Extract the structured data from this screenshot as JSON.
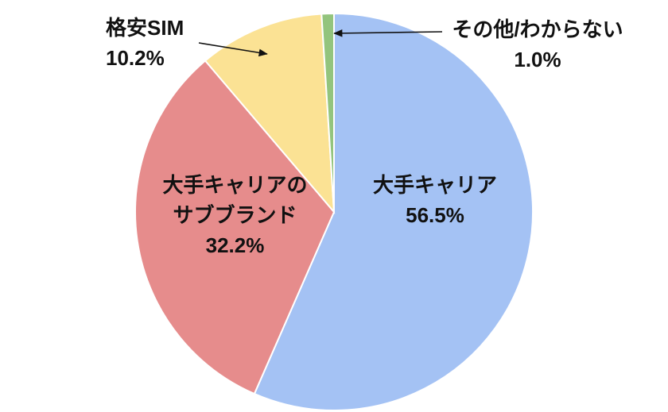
{
  "chart_data": {
    "type": "pie",
    "labels": [
      "大手キャリア",
      "大手キャリアのサブブランド",
      "格安SIM",
      "その他/わからない"
    ],
    "values": [
      56.5,
      32.2,
      10.2,
      1.0
    ],
    "colors": [
      "#a4c2f4",
      "#e68c8c",
      "#fbe294",
      "#93c47d"
    ],
    "start_angle_deg": 0,
    "direction": "clockwise",
    "title": "",
    "legend": "none",
    "label_style": "inside-for-large-slices, outside-with-arrow-for-small-slices"
  },
  "labels": {
    "major_carrier_line1": "大手キャリア",
    "major_carrier_line2": "56.5%",
    "subbrand_line1": "大手キャリアの",
    "subbrand_line2": "サブブランド",
    "subbrand_line3": "32.2%",
    "budget_sim_line1": "格安SIM",
    "budget_sim_line2": "10.2%",
    "other_line1": "その他/わからない",
    "other_line2": "1.0%"
  }
}
